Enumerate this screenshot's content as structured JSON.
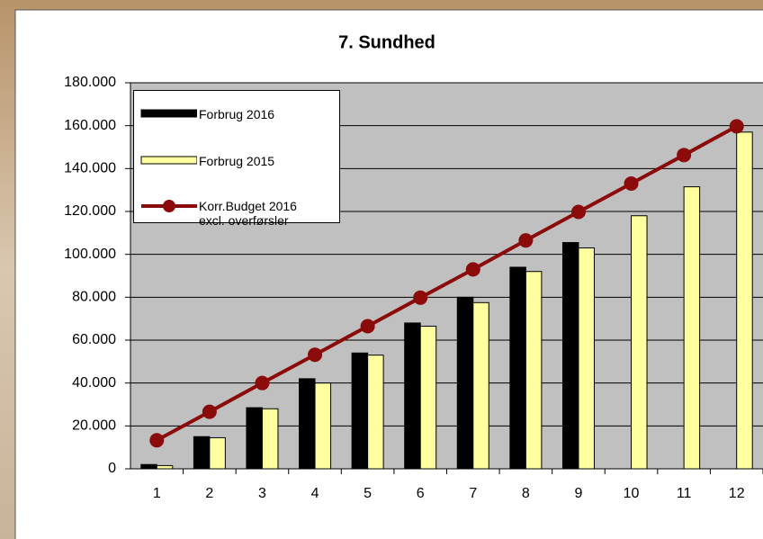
{
  "chart_data": {
    "type": "bar_line",
    "title": "7. Sundhed",
    "categories": [
      "1",
      "2",
      "3",
      "4",
      "5",
      "6",
      "7",
      "8",
      "9",
      "10",
      "11",
      "12"
    ],
    "series": [
      {
        "name": "Forbrug 2016",
        "type": "bar",
        "color": "#000000",
        "values": [
          2000,
          15000,
          28500,
          42000,
          54000,
          68000,
          80000,
          94000,
          105500,
          null,
          null,
          null
        ]
      },
      {
        "name": "Forbrug 2015",
        "type": "bar",
        "color": "#ffffa0",
        "values": [
          1500,
          14500,
          28000,
          40000,
          53000,
          66500,
          77500,
          92000,
          103000,
          118000,
          131500,
          157000
        ]
      },
      {
        "name": "Korr.Budget 2016 excl. overførsler",
        "type": "line",
        "color": "#8b0a0a",
        "values": [
          13300,
          26600,
          40000,
          53200,
          66500,
          79800,
          93000,
          106500,
          119800,
          133000,
          146300,
          159700
        ]
      }
    ],
    "ylim": [
      0,
      180000
    ],
    "yticks": [
      0,
      {
        "value": 20000,
        "label": "20.000"
      },
      {
        "value": 40000,
        "label": "40.000"
      },
      {
        "value": 60000,
        "label": "60.000"
      },
      {
        "value": 80000,
        "label": "80.000"
      },
      {
        "value": 100000,
        "label": "100.000"
      },
      {
        "value": 120000,
        "label": "120.000"
      },
      {
        "value": 140000,
        "label": "140.000"
      },
      {
        "value": 160000,
        "label": "160.000"
      },
      {
        "value": 180000,
        "label": "180.000"
      }
    ],
    "grid": true,
    "legend": "upper left",
    "plot_background": "#c0c0c0"
  }
}
